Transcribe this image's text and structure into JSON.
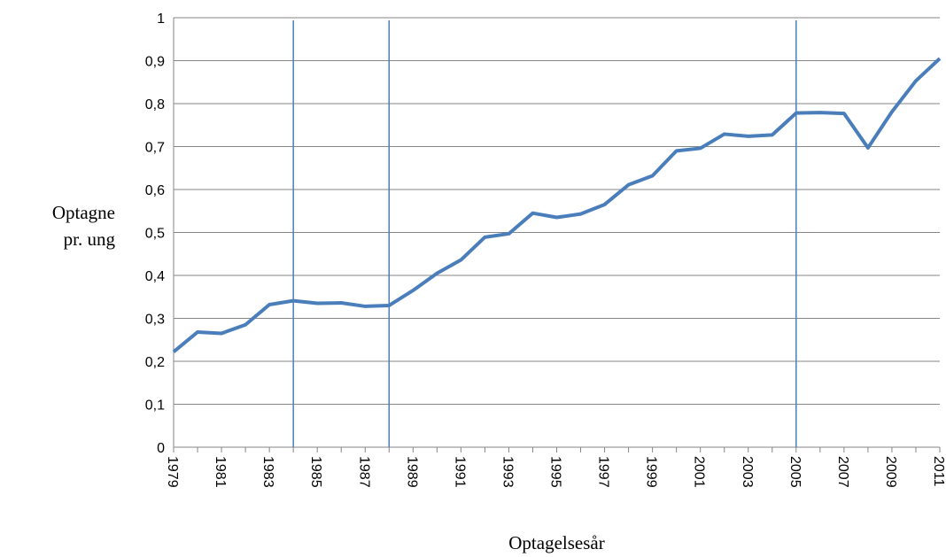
{
  "chart_data": {
    "type": "line",
    "xlabel": "Optagelsesår",
    "ylabel": [
      "Optagne",
      "pr. ung"
    ],
    "x": [
      1979,
      1980,
      1981,
      1982,
      1983,
      1984,
      1985,
      1986,
      1987,
      1988,
      1989,
      1990,
      1991,
      1992,
      1993,
      1994,
      1995,
      1996,
      1997,
      1998,
      1999,
      2000,
      2001,
      2002,
      2003,
      2004,
      2005,
      2006,
      2007,
      2008,
      2009,
      2010,
      2011
    ],
    "series": [
      {
        "name": "Optagne pr. ung",
        "color": "#4a7ebb",
        "values": [
          0.222,
          0.268,
          0.265,
          0.285,
          0.332,
          0.341,
          0.335,
          0.336,
          0.328,
          0.33,
          0.365,
          0.405,
          0.436,
          0.489,
          0.497,
          0.545,
          0.535,
          0.543,
          0.565,
          0.611,
          0.632,
          0.69,
          0.696,
          0.729,
          0.724,
          0.727,
          0.778,
          0.779,
          0.777,
          0.697,
          0.781,
          0.853,
          0.905
        ]
      }
    ],
    "vlines": [
      1984,
      1988,
      2005
    ],
    "xlim": [
      1979,
      2011
    ],
    "xticks": [
      1979,
      1981,
      1983,
      1985,
      1987,
      1989,
      1991,
      1993,
      1995,
      1997,
      1999,
      2001,
      2003,
      2005,
      2007,
      2009,
      2011
    ],
    "ylim": [
      0,
      1
    ],
    "yticks": [
      0,
      {
        "value": 0.1,
        "label": "0,1"
      },
      {
        "value": 0.2,
        "label": "0,2"
      },
      {
        "value": 0.3,
        "label": "0,3"
      },
      {
        "value": 0.4,
        "label": "0,4"
      },
      {
        "value": 0.5,
        "label": "0,5"
      },
      {
        "value": 0.6,
        "label": "0,6"
      },
      {
        "value": 0.7,
        "label": "0,7"
      },
      {
        "value": 0.8,
        "label": "0,8"
      },
      {
        "value": 0.9,
        "label": "0,9"
      },
      1
    ],
    "grid": true
  }
}
